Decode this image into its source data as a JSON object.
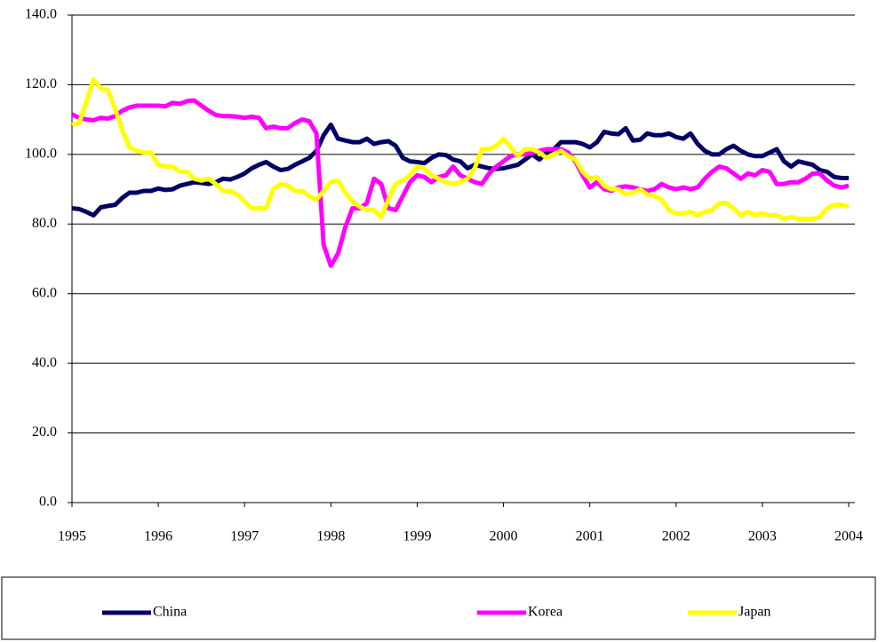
{
  "chart_data": {
    "type": "line",
    "categories": [
      "1995",
      null,
      null,
      null,
      null,
      null,
      null,
      null,
      null,
      null,
      null,
      null,
      "1996",
      null,
      null,
      null,
      null,
      null,
      null,
      null,
      null,
      null,
      null,
      null,
      "1997",
      null,
      null,
      null,
      null,
      null,
      null,
      null,
      null,
      null,
      null,
      null,
      "1998",
      null,
      null,
      null,
      null,
      null,
      null,
      null,
      null,
      null,
      null,
      null,
      "1999",
      null,
      null,
      null,
      null,
      null,
      null,
      null,
      null,
      null,
      null,
      null,
      "2000",
      null,
      null,
      null,
      null,
      null,
      null,
      null,
      null,
      null,
      null,
      null,
      "2001",
      null,
      null,
      null,
      null,
      null,
      null,
      null,
      null,
      null,
      null,
      null,
      "2002",
      null,
      null,
      null,
      null,
      null,
      null,
      null,
      null,
      null,
      null,
      null,
      "2003",
      null,
      null,
      null,
      null,
      null,
      null,
      null,
      null,
      null,
      null,
      null,
      "2004"
    ],
    "series": [
      {
        "name": "China",
        "color": "#000066",
        "values": [
          84.5,
          84.3,
          83.5,
          82.5,
          84.8,
          85.2,
          85.5,
          87.5,
          89,
          89,
          89.5,
          89.5,
          90.2,
          89.8,
          90,
          91,
          91.5,
          92,
          91.8,
          91.5,
          92,
          93,
          92.8,
          93.5,
          94.5,
          96,
          97,
          97.8,
          96.5,
          95.5,
          95.8,
          97,
          98,
          99,
          101,
          105.5,
          108.5,
          104.5,
          104,
          103.5,
          103.5,
          104.5,
          103,
          103.5,
          103.8,
          102.5,
          99,
          98,
          97.8,
          97.5,
          99,
          100,
          99.8,
          98.5,
          98,
          96,
          97,
          96.5,
          96,
          95.8,
          96,
          96.5,
          97,
          98.5,
          100,
          98.5,
          100.5,
          101.5,
          103.5,
          103.5,
          103.5,
          103,
          102,
          103.5,
          106.5,
          106,
          105.8,
          107.5,
          104,
          104.2,
          106,
          105.5,
          105.5,
          106,
          105,
          104.5,
          106,
          103,
          101,
          100,
          100,
          101.5,
          102.5,
          101,
          100,
          99.5,
          99.5,
          100.5,
          101.5,
          98,
          96.5,
          98,
          97.5,
          97,
          95.5,
          95,
          93.5,
          93.2,
          93.2
        ]
      },
      {
        "name": "Korea",
        "color": "#ff00ff",
        "values": [
          111.5,
          110.5,
          110,
          109.8,
          110.5,
          110.3,
          111,
          112.5,
          113.5,
          114,
          114,
          114,
          114,
          113.8,
          114.8,
          114.5,
          115.3,
          115.5,
          114,
          112.5,
          111.3,
          111,
          111,
          110.8,
          110.5,
          110.8,
          110.5,
          107.5,
          108,
          107.5,
          107.5,
          109,
          110,
          109.5,
          106,
          74,
          68,
          71.5,
          79,
          84.5,
          84.5,
          86,
          93,
          91.5,
          84.5,
          84,
          88,
          92,
          94,
          93.5,
          92,
          93.5,
          94,
          96.5,
          94,
          93,
          92,
          91.5,
          94.5,
          96.5,
          98,
          99.5,
          100,
          100,
          100.5,
          101,
          101.5,
          101.5,
          101.5,
          100.5,
          98,
          94,
          90.5,
          92,
          90,
          89.5,
          90.5,
          90.8,
          90.5,
          90,
          89.5,
          90,
          91.5,
          90.5,
          90,
          90.5,
          90,
          90.5,
          93,
          95,
          96.5,
          96,
          94.5,
          93,
          94.5,
          94,
          95.5,
          95,
          91.5,
          91.5,
          92,
          92,
          93,
          94.5,
          94.5,
          92.5,
          91,
          90.5,
          91
        ]
      },
      {
        "name": "Japan",
        "color": "#ffff00",
        "values": [
          108.5,
          109,
          115,
          121.5,
          119,
          118.5,
          113,
          107,
          102,
          101,
          100.5,
          100.5,
          97,
          96.5,
          96.5,
          95,
          95,
          93,
          92.5,
          93,
          91.5,
          89.5,
          89.5,
          88.5,
          86.5,
          84.5,
          84.5,
          84.5,
          90,
          91.5,
          91,
          89.5,
          89.5,
          88,
          87,
          89.5,
          92,
          92.5,
          89,
          86.5,
          85,
          84,
          84,
          82,
          87,
          91.5,
          92.5,
          94,
          96.5,
          96,
          94,
          93,
          92,
          91.5,
          92,
          93,
          96,
          101.5,
          101.5,
          102.5,
          104.5,
          102,
          99.5,
          101.5,
          101.5,
          100.5,
          99,
          100,
          101,
          99.5,
          98.5,
          95,
          93,
          93.5,
          91,
          90,
          90,
          88.5,
          89,
          90,
          88.5,
          88,
          87,
          84,
          83,
          83,
          83.5,
          82.5,
          83.5,
          84,
          86,
          86,
          84.5,
          82.5,
          83.5,
          82.5,
          83,
          82.5,
          82.5,
          81.5,
          82,
          81.5,
          81.5,
          81.5,
          82,
          84.5,
          85.5,
          85.5,
          85
        ]
      }
    ],
    "ylim": [
      0,
      140
    ],
    "yticks": [
      {
        "value": 0,
        "label": "0.0"
      },
      {
        "value": 20,
        "label": "20.0"
      },
      {
        "value": 40,
        "label": "40.0"
      },
      {
        "value": 60,
        "label": "60.0"
      },
      {
        "value": 80,
        "label": "80.0"
      },
      {
        "value": 100,
        "label": "100.0"
      },
      {
        "value": 120,
        "label": "120.0"
      },
      {
        "value": 140,
        "label": "140.0"
      }
    ],
    "grid": true,
    "legend": "bottom"
  }
}
